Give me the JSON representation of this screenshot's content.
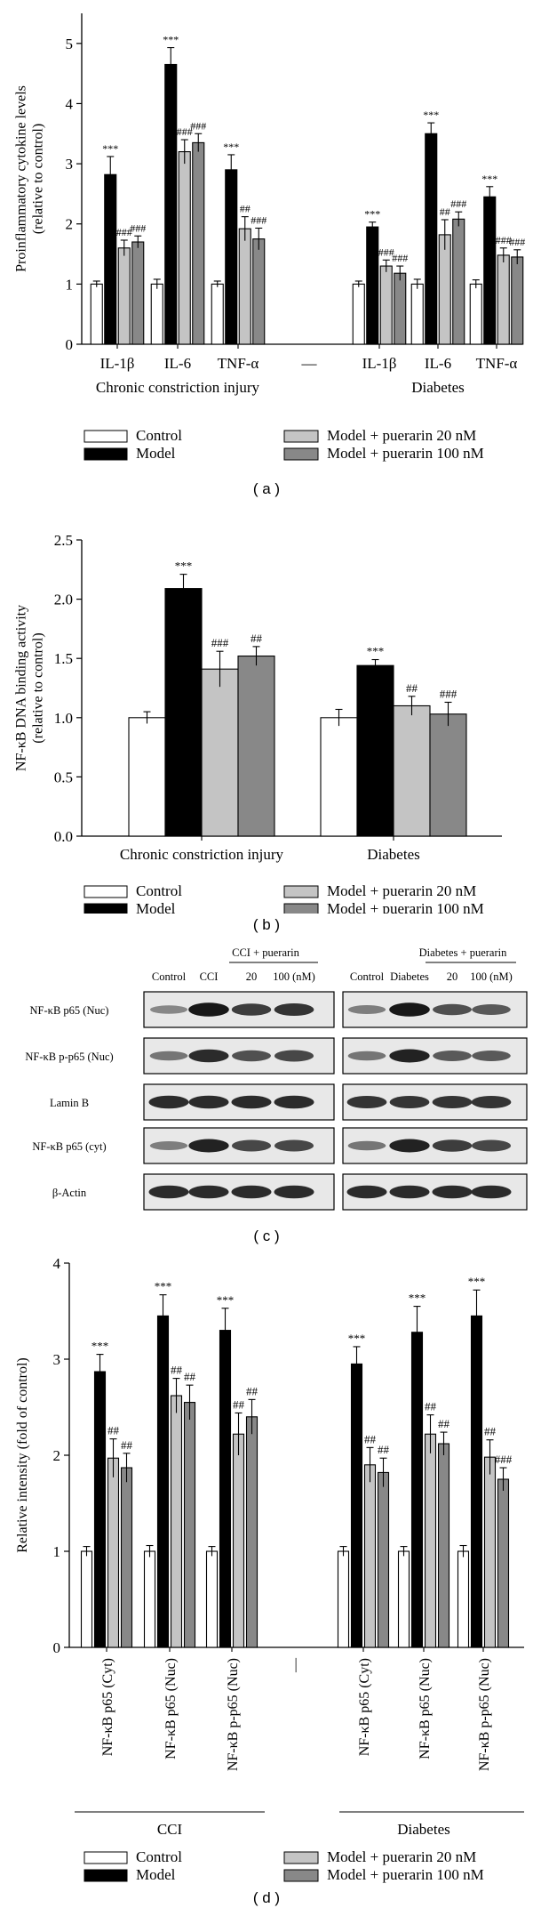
{
  "colors": {
    "control": "#ffffff",
    "model": "#000000",
    "p20": "#c4c4c4",
    "p100": "#888888",
    "axis": "#000000"
  },
  "legend": {
    "control": "Control",
    "model": "Model",
    "p20": "Model + puerarin 20 nM",
    "p100": "Model + puerarin 100 nM"
  },
  "panel_labels": {
    "a": "( a )",
    "b": "( b )",
    "c": "( c )",
    "d": "( d )"
  },
  "chart_data": [
    {
      "panel": "a",
      "type": "bar",
      "ylabel": "Proinflammatory cytokine levels\n(relative to control)",
      "ylim": [
        0,
        5.5
      ],
      "yticks": [
        0,
        1,
        2,
        3,
        4,
        5
      ],
      "groups": [
        {
          "label": "Chronic constriction injury",
          "categories": [
            "IL-1β",
            "IL-6",
            "TNF-α"
          ]
        },
        {
          "label": "Diabetes",
          "categories": [
            "IL-1β",
            "IL-6",
            "TNF-α"
          ]
        }
      ],
      "separator_label": "—",
      "series": [
        {
          "name": "Control",
          "key": "control",
          "values": [
            1.0,
            1.0,
            1.0,
            1.0,
            1.0,
            1.0
          ],
          "errors": [
            0.05,
            0.08,
            0.05,
            0.05,
            0.08,
            0.07
          ],
          "sig": [
            "",
            "",
            "",
            "",
            "",
            ""
          ]
        },
        {
          "name": "Model",
          "key": "model",
          "values": [
            2.82,
            4.65,
            2.9,
            1.95,
            3.5,
            2.45
          ],
          "errors": [
            0.3,
            0.28,
            0.25,
            0.08,
            0.18,
            0.17
          ],
          "sig": [
            "***",
            "***",
            "***",
            "***",
            "***",
            "***"
          ]
        },
        {
          "name": "Model + puerarin 20 nM",
          "key": "p20",
          "values": [
            1.6,
            3.2,
            1.92,
            1.3,
            1.82,
            1.48
          ],
          "errors": [
            0.13,
            0.2,
            0.2,
            0.1,
            0.25,
            0.12
          ],
          "sig": [
            "###",
            "###",
            "##",
            "###",
            "##",
            "###"
          ]
        },
        {
          "name": "Model + puerarin 100 nM",
          "key": "p100",
          "values": [
            1.7,
            3.35,
            1.75,
            1.18,
            2.08,
            1.45
          ],
          "errors": [
            0.1,
            0.15,
            0.18,
            0.12,
            0.12,
            0.12
          ],
          "sig": [
            "###",
            "###",
            "###",
            "###",
            "###",
            "###"
          ]
        }
      ]
    },
    {
      "panel": "b",
      "type": "bar",
      "ylabel": "NF-κB DNA binding activity\n(relative to control)",
      "ylim": [
        0,
        2.5
      ],
      "yticks": [
        0.0,
        0.5,
        1.0,
        1.5,
        2.0,
        2.5
      ],
      "tick_decimals": 1,
      "categories": [
        "Chronic constriction injury",
        "Diabetes"
      ],
      "series": [
        {
          "name": "Control",
          "key": "control",
          "values": [
            1.0,
            1.0
          ],
          "errors": [
            0.05,
            0.07
          ],
          "sig": [
            "",
            ""
          ]
        },
        {
          "name": "Model",
          "key": "model",
          "values": [
            2.09,
            1.44
          ],
          "errors": [
            0.12,
            0.05
          ],
          "sig": [
            "***",
            "***"
          ]
        },
        {
          "name": "Model + puerarin 20 nM",
          "key": "p20",
          "values": [
            1.41,
            1.1
          ],
          "errors": [
            0.15,
            0.08
          ],
          "sig": [
            "###",
            "##"
          ]
        },
        {
          "name": "Model + puerarin 100 nM",
          "key": "p100",
          "values": [
            1.52,
            1.03
          ],
          "errors": [
            0.08,
            0.1
          ],
          "sig": [
            "##",
            "###"
          ]
        }
      ]
    },
    {
      "panel": "d",
      "type": "bar",
      "ylabel": "Relative intensity (fold of control)",
      "ylim": [
        0,
        4
      ],
      "yticks": [
        0,
        1,
        2,
        3,
        4
      ],
      "groups": [
        {
          "label": "CCI",
          "categories": [
            "NF-κB p65 (Cyt)",
            "NF-κB p65 (Nuc)",
            "NF-κB p-p65 (Nuc)"
          ]
        },
        {
          "label": "Diabetes",
          "categories": [
            "NF-κB p65 (Cyt)",
            "NF-κB p65 (Nuc)",
            "NF-κB p-p65 (Nuc)"
          ]
        }
      ],
      "separator_label": "—",
      "series": [
        {
          "name": "Control",
          "key": "control",
          "values": [
            1.0,
            1.0,
            1.0,
            1.0,
            1.0,
            1.0
          ],
          "errors": [
            0.05,
            0.06,
            0.05,
            0.05,
            0.05,
            0.06
          ],
          "sig": [
            "",
            "",
            "",
            "",
            "",
            ""
          ]
        },
        {
          "name": "Model",
          "key": "model",
          "values": [
            2.87,
            3.45,
            3.3,
            2.95,
            3.28,
            3.45
          ],
          "errors": [
            0.18,
            0.22,
            0.23,
            0.18,
            0.27,
            0.27
          ],
          "sig": [
            "***",
            "***",
            "***",
            "***",
            "***",
            "***"
          ]
        },
        {
          "name": "Model + puerarin 20 nM",
          "key": "p20",
          "values": [
            1.97,
            2.62,
            2.22,
            1.9,
            2.22,
            1.98
          ],
          "errors": [
            0.2,
            0.18,
            0.22,
            0.18,
            0.2,
            0.18
          ],
          "sig": [
            "##",
            "##",
            "##",
            "##",
            "##",
            "##"
          ]
        },
        {
          "name": "Model + puerarin 100 nM",
          "key": "p100",
          "values": [
            1.87,
            2.55,
            2.4,
            1.82,
            2.12,
            1.75
          ],
          "errors": [
            0.15,
            0.18,
            0.18,
            0.15,
            0.12,
            0.12
          ],
          "sig": [
            "##",
            "##",
            "##",
            "##",
            "##",
            "###"
          ]
        }
      ]
    }
  ],
  "blot": {
    "header": {
      "cci_group": "CCI + puerarin",
      "diab_group": "Diabetes + puerarin",
      "cci_cols": [
        "Control",
        "CCI",
        "20",
        "100 (nM)"
      ],
      "diab_cols": [
        "Control",
        "Diabetes",
        "20",
        "100 (nM)"
      ]
    },
    "rows": [
      {
        "label": "NF-κB p65 (Nuc)",
        "cci": [
          0.35,
          0.95,
          0.75,
          0.8
        ],
        "diab": [
          0.4,
          0.95,
          0.65,
          0.6
        ]
      },
      {
        "label": "NF-κB p-p65 (Nuc)",
        "cci": [
          0.45,
          0.85,
          0.65,
          0.7
        ],
        "diab": [
          0.45,
          0.9,
          0.6,
          0.6
        ]
      },
      {
        "label": "Lamin B",
        "cci": [
          0.85,
          0.85,
          0.85,
          0.85
        ],
        "diab": [
          0.8,
          0.8,
          0.8,
          0.8
        ]
      },
      {
        "label": "NF-κB p65 (cyt)",
        "cci": [
          0.4,
          0.9,
          0.7,
          0.7
        ],
        "diab": [
          0.45,
          0.9,
          0.75,
          0.7
        ]
      },
      {
        "label": "β-Actin",
        "cci": [
          0.85,
          0.85,
          0.85,
          0.85
        ],
        "diab": [
          0.85,
          0.85,
          0.85,
          0.85
        ]
      }
    ]
  }
}
